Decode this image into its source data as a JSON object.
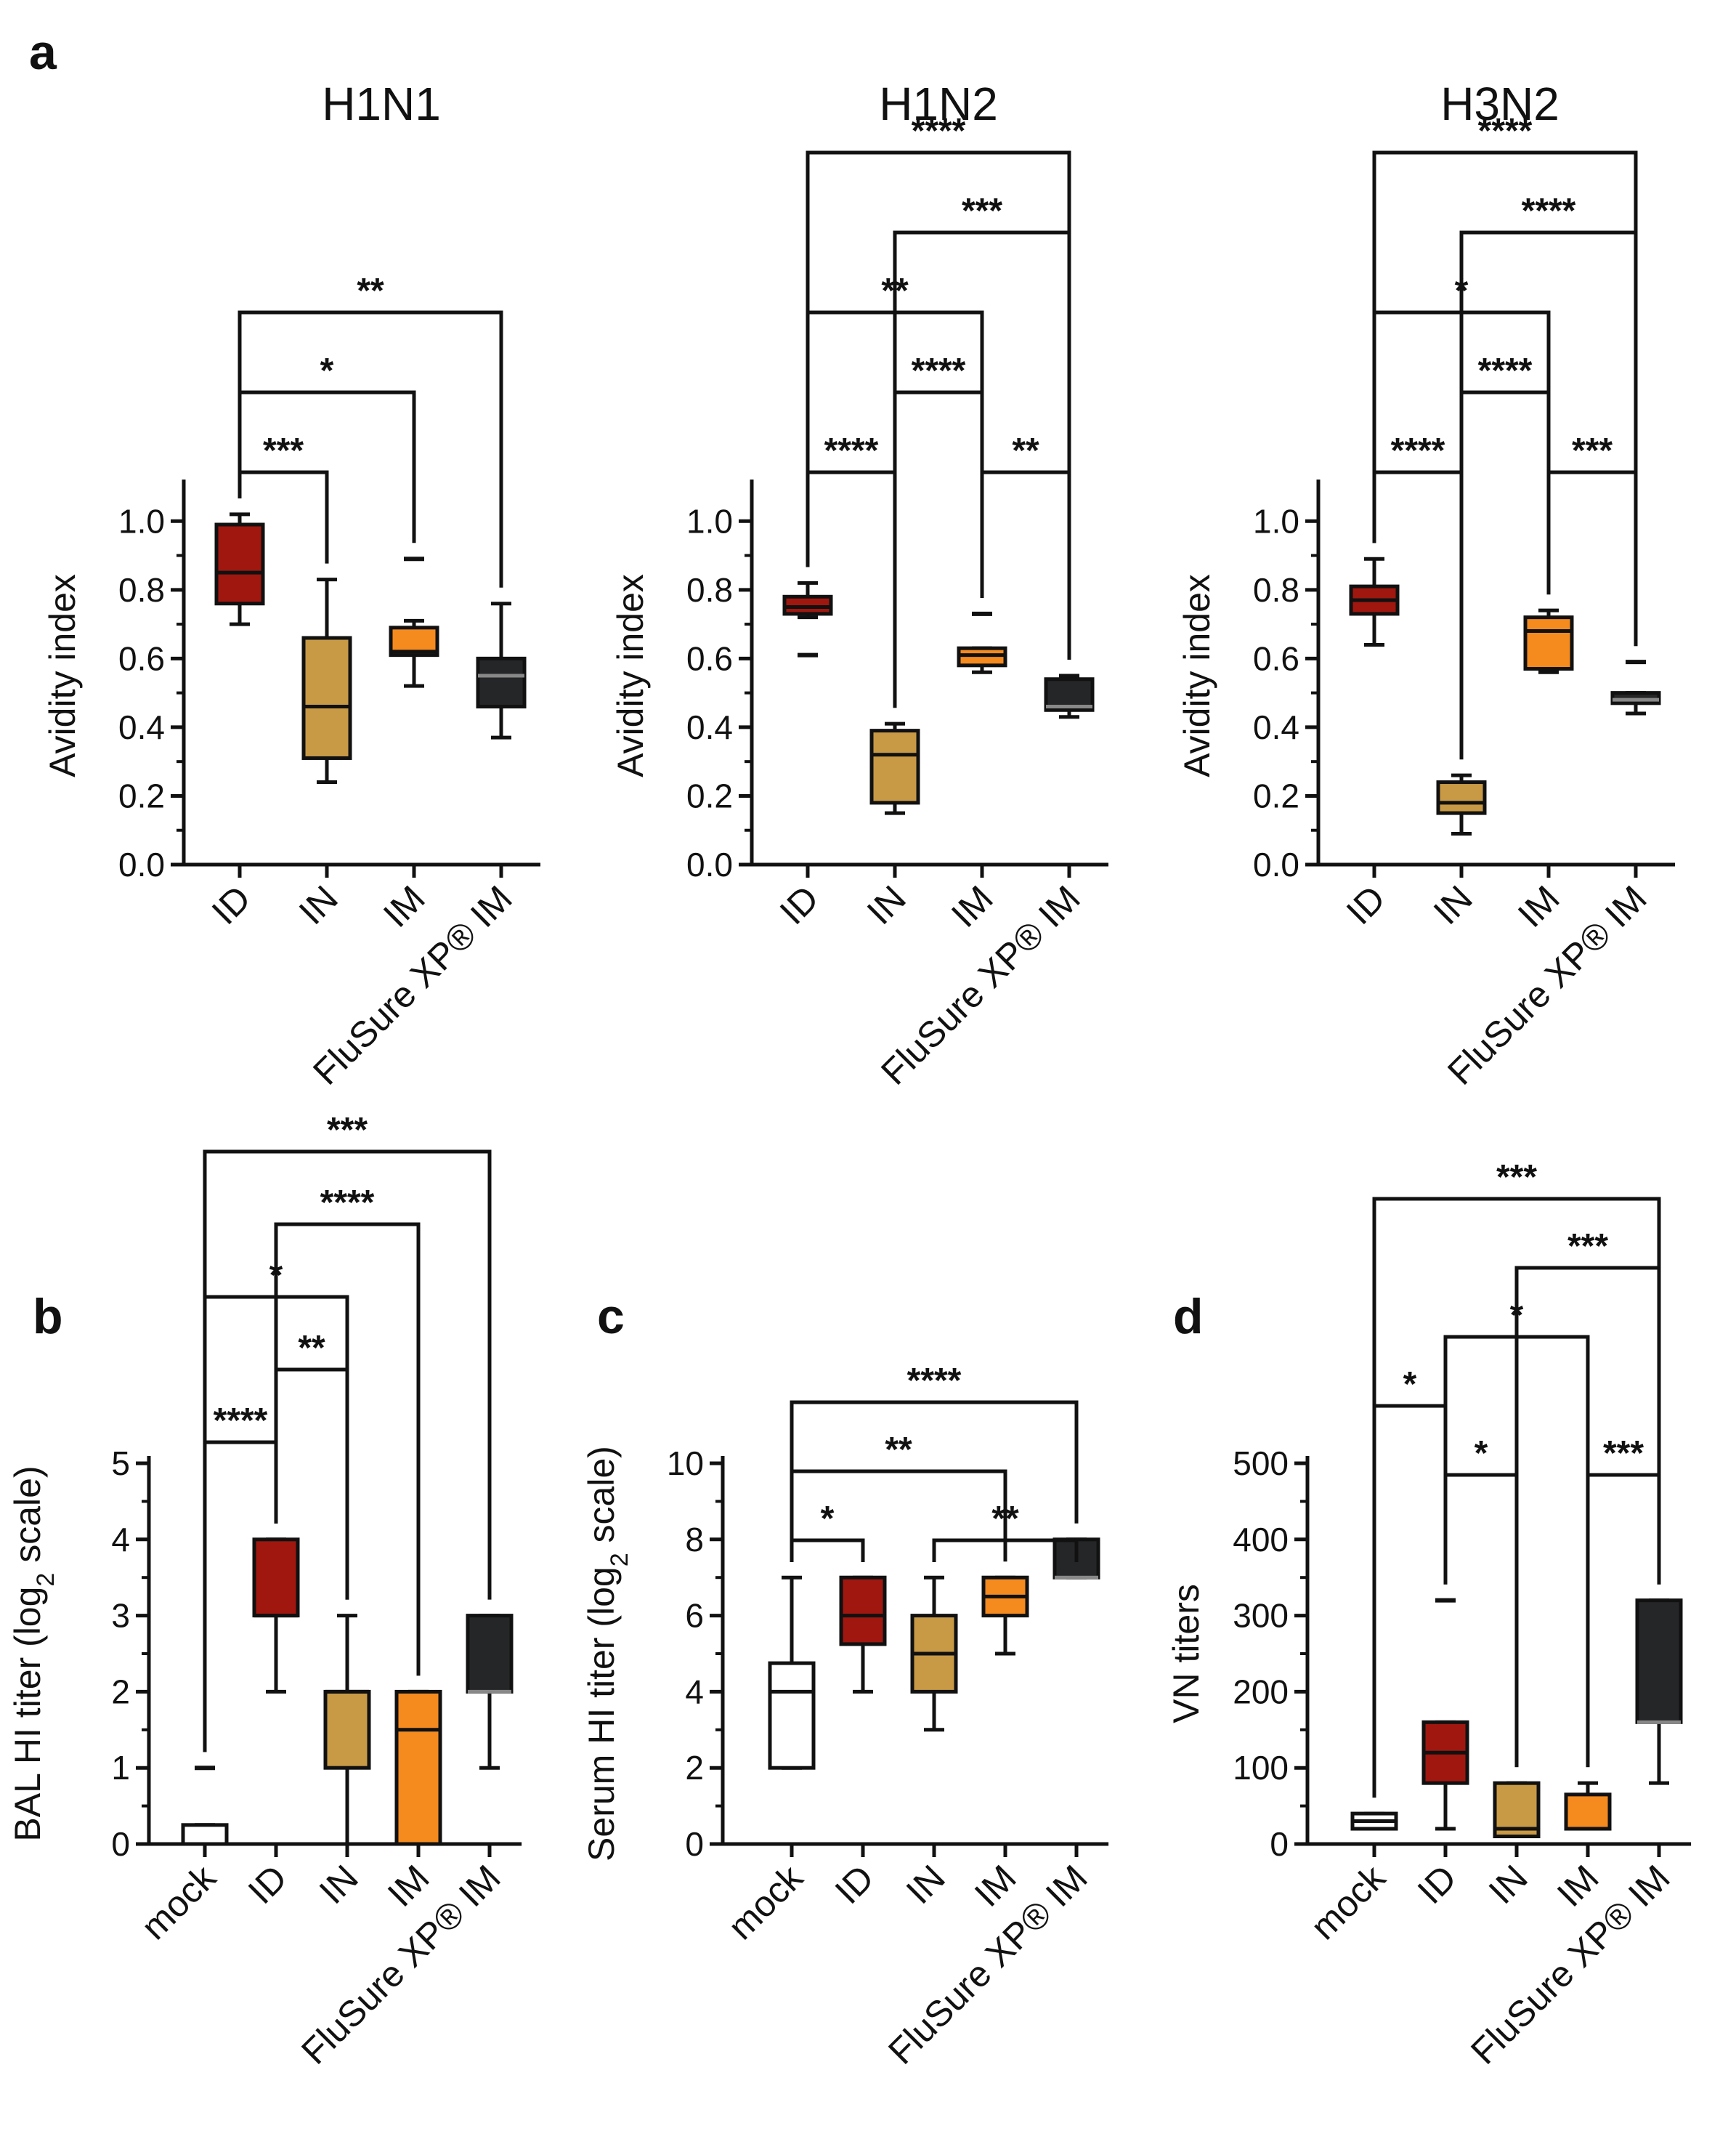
{
  "colors": {
    "mock": "#ffffff",
    "ID": "#a0170f",
    "IN": "#c89a45",
    "IM": "#f58a1f",
    "FluSure": "#252627"
  },
  "chart_data": [
    {
      "panel": "a",
      "title": "H1N1",
      "type": "box",
      "ylabel": "Avidity index",
      "ylim": [
        0,
        1.1
      ],
      "yticks": [
        "0.0",
        "0.2",
        "0.4",
        "0.6",
        "0.8",
        "1.0"
      ],
      "categories": [
        "ID",
        "IN",
        "IM",
        "FluSure XP® IM"
      ],
      "boxes": [
        {
          "min": 0.7,
          "q1": 0.76,
          "median": 0.85,
          "q3": 0.99,
          "max": 1.02
        },
        {
          "min": 0.24,
          "q1": 0.31,
          "median": 0.46,
          "q3": 0.66,
          "max": 0.83
        },
        {
          "min": 0.52,
          "q1": 0.61,
          "median": 0.62,
          "q3": 0.69,
          "max": 0.71,
          "outliers": [
            0.89
          ]
        },
        {
          "min": 0.37,
          "q1": 0.46,
          "median": 0.55,
          "q3": 0.6,
          "max": 0.76
        }
      ],
      "significance": [
        {
          "a": 0,
          "b": 1,
          "label": "***"
        },
        {
          "a": 0,
          "b": 2,
          "label": "*"
        },
        {
          "a": 0,
          "b": 3,
          "label": "**"
        }
      ]
    },
    {
      "panel": "",
      "title": "H1N2",
      "type": "box",
      "ylabel": "Avidity index",
      "ylim": [
        0,
        1.1
      ],
      "yticks": [
        "0.0",
        "0.2",
        "0.4",
        "0.6",
        "0.8",
        "1.0"
      ],
      "categories": [
        "ID",
        "IN",
        "IM",
        "FluSure XP® IM"
      ],
      "boxes": [
        {
          "min": 0.72,
          "q1": 0.73,
          "median": 0.75,
          "q3": 0.78,
          "max": 0.82,
          "outliers": [
            0.61
          ]
        },
        {
          "min": 0.15,
          "q1": 0.18,
          "median": 0.32,
          "q3": 0.39,
          "max": 0.41
        },
        {
          "min": 0.56,
          "q1": 0.58,
          "median": 0.61,
          "q3": 0.63,
          "max": 0.63,
          "outliers": [
            0.73
          ]
        },
        {
          "min": 0.43,
          "q1": 0.45,
          "median": 0.46,
          "q3": 0.54,
          "max": 0.55
        }
      ],
      "significance": [
        {
          "a": 0,
          "b": 1,
          "label": "****"
        },
        {
          "a": 2,
          "b": 3,
          "label": "**"
        },
        {
          "a": 1,
          "b": 2,
          "label": "****"
        },
        {
          "a": 0,
          "b": 2,
          "label": "**"
        },
        {
          "a": 1,
          "b": 3,
          "label": "***"
        },
        {
          "a": 0,
          "b": 3,
          "label": "****"
        }
      ]
    },
    {
      "panel": "",
      "title": "H3N2",
      "type": "box",
      "ylabel": "Avidity index",
      "ylim": [
        0,
        1.1
      ],
      "yticks": [
        "0.0",
        "0.2",
        "0.4",
        "0.6",
        "0.8",
        "1.0"
      ],
      "categories": [
        "ID",
        "IN",
        "IM",
        "FluSure XP® IM"
      ],
      "boxes": [
        {
          "min": 0.64,
          "q1": 0.73,
          "median": 0.77,
          "q3": 0.81,
          "max": 0.89
        },
        {
          "min": 0.09,
          "q1": 0.15,
          "median": 0.18,
          "q3": 0.24,
          "max": 0.26
        },
        {
          "min": 0.56,
          "q1": 0.57,
          "median": 0.68,
          "q3": 0.72,
          "max": 0.74
        },
        {
          "min": 0.44,
          "q1": 0.47,
          "median": 0.48,
          "q3": 0.5,
          "max": 0.5,
          "outliers": [
            0.59
          ]
        }
      ],
      "significance": [
        {
          "a": 0,
          "b": 1,
          "label": "****"
        },
        {
          "a": 2,
          "b": 3,
          "label": "***"
        },
        {
          "a": 1,
          "b": 2,
          "label": "****"
        },
        {
          "a": 0,
          "b": 2,
          "label": "*"
        },
        {
          "a": 1,
          "b": 3,
          "label": "****"
        },
        {
          "a": 0,
          "b": 3,
          "label": "****"
        }
      ]
    },
    {
      "panel": "b",
      "title": "",
      "type": "box",
      "ylabel": "BAL HI titer (log",
      "ylabel_sub": "2",
      "ylabel_end": " scale)",
      "ylim": [
        0,
        5
      ],
      "yticks": [
        "0",
        "1",
        "2",
        "3",
        "4",
        "5"
      ],
      "categories": [
        "mock",
        "ID",
        "IN",
        "IM",
        "FluSure XP® IM"
      ],
      "boxes": [
        {
          "min": 0,
          "q1": 0,
          "median": 0,
          "q3": 0.25,
          "max": 0.25,
          "outliers": [
            1.0
          ]
        },
        {
          "min": 2,
          "q1": 3,
          "median": 3,
          "q3": 4,
          "max": 4
        },
        {
          "min": 0,
          "q1": 1,
          "median": 2,
          "q3": 2,
          "max": 3
        },
        {
          "min": 0,
          "q1": 0,
          "median": 1.5,
          "q3": 2,
          "max": 2
        },
        {
          "min": 1,
          "q1": 2,
          "median": 2,
          "q3": 3,
          "max": 3
        }
      ],
      "significance": [
        {
          "a": 0,
          "b": 1,
          "label": "****"
        },
        {
          "a": 1,
          "b": 2,
          "label": "**"
        },
        {
          "a": 0,
          "b": 2,
          "label": "*"
        },
        {
          "a": 1,
          "b": 3,
          "label": "****"
        },
        {
          "a": 0,
          "b": 4,
          "label": "***"
        }
      ]
    },
    {
      "panel": "c",
      "title": "",
      "type": "box",
      "ylabel": "Serum HI titer (log",
      "ylabel_sub": "2",
      "ylabel_end": " scale)",
      "ylim": [
        0,
        10
      ],
      "yticks": [
        "0",
        "2",
        "4",
        "6",
        "8",
        "10"
      ],
      "categories": [
        "mock",
        "ID",
        "IN",
        "IM",
        "FluSure XP® IM"
      ],
      "boxes": [
        {
          "min": 2,
          "q1": 2,
          "median": 4,
          "q3": 4.75,
          "max": 7
        },
        {
          "min": 4,
          "q1": 5.25,
          "median": 6,
          "q3": 7,
          "max": 7
        },
        {
          "min": 3,
          "q1": 4,
          "median": 5,
          "q3": 6,
          "max": 7
        },
        {
          "min": 5,
          "q1": 6,
          "median": 6.5,
          "q3": 7,
          "max": 7
        },
        {
          "min": 7,
          "q1": 7,
          "median": 7,
          "q3": 8,
          "max": 8
        }
      ],
      "significance": [
        {
          "a": 0,
          "b": 1,
          "label": "*"
        },
        {
          "a": 2,
          "b": 4,
          "label": "**"
        },
        {
          "a": 0,
          "b": 3,
          "label": "**"
        },
        {
          "a": 0,
          "b": 4,
          "label": "****"
        }
      ]
    },
    {
      "panel": "d",
      "title": "",
      "type": "box",
      "ylabel": "VN titers",
      "ylabel_sub": "",
      "ylabel_end": "",
      "ylim": [
        0,
        500
      ],
      "yticks": [
        "0",
        "100",
        "200",
        "300",
        "400",
        "500"
      ],
      "categories": [
        "mock",
        "ID",
        "IN",
        "IM",
        "FluSure XP® IM"
      ],
      "boxes": [
        {
          "min": 20,
          "q1": 20,
          "median": 30,
          "q3": 40,
          "max": 40
        },
        {
          "min": 20,
          "q1": 80,
          "median": 120,
          "q3": 160,
          "max": 160,
          "outliers": [
            320
          ]
        },
        {
          "min": 10,
          "q1": 10,
          "median": 20,
          "q3": 80,
          "max": 80
        },
        {
          "min": 20,
          "q1": 20,
          "median": 20,
          "q3": 65,
          "max": 80
        },
        {
          "min": 80,
          "q1": 160,
          "median": 160,
          "q3": 320,
          "max": 320
        }
      ],
      "significance": [
        {
          "a": 1,
          "b": 2,
          "label": "*"
        },
        {
          "a": 0,
          "b": 1,
          "label": "*"
        },
        {
          "a": 3,
          "b": 4,
          "label": "***"
        },
        {
          "a": 1,
          "b": 3,
          "label": "*"
        },
        {
          "a": 2,
          "b": 4,
          "label": "***"
        },
        {
          "a": 0,
          "b": 4,
          "label": "***"
        }
      ]
    }
  ]
}
